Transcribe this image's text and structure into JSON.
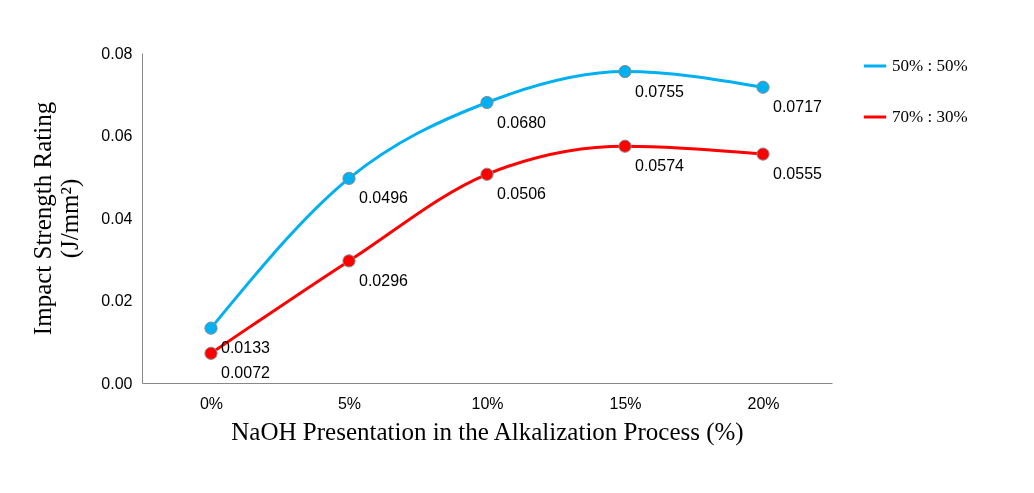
{
  "chart_data": {
    "type": "line",
    "xlabel": "NaOH Presentation in the Alkalization Process (%)",
    "ylabel": "Impact Strength Rating (J/mm²)",
    "categories": [
      "0%",
      "5%",
      "10%",
      "15%",
      "20%"
    ],
    "series": [
      {
        "name": "50% : 50%",
        "color": "#00b0f0",
        "values": [
          0.0133,
          0.0496,
          0.068,
          0.0755,
          0.0717
        ],
        "value_labels": [
          "0.0133",
          "0.0496",
          "0.0680",
          "0.0755",
          "0.0717"
        ]
      },
      {
        "name": "70% : 30%",
        "color": "#ff0000",
        "values": [
          0.0072,
          0.0296,
          0.0506,
          0.0574,
          0.0555
        ],
        "value_labels": [
          "0.0072",
          "0.0296",
          "0.0506",
          "0.0574",
          "0.0555"
        ]
      }
    ],
    "ylim": [
      0,
      0.08
    ],
    "yticks": [
      {
        "value": 0,
        "label": "0.00"
      },
      {
        "value": 0.02,
        "label": "0.02"
      },
      {
        "value": 0.04,
        "label": "0.04"
      },
      {
        "value": 0.06,
        "label": "0.06"
      },
      {
        "value": 0.08,
        "label": "0.08"
      }
    ],
    "grid": false,
    "legend": "right",
    "marker": "circle",
    "line_style": "solid"
  }
}
